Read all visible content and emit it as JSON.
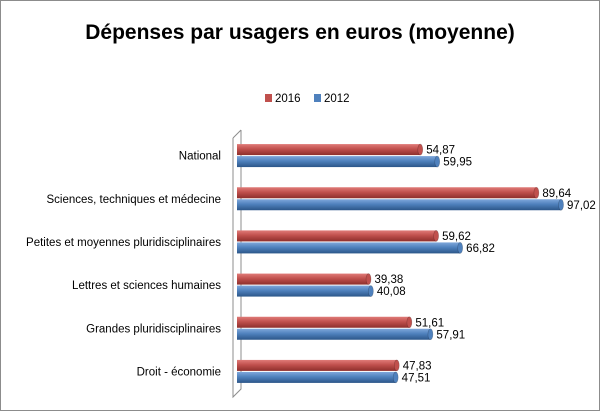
{
  "chart_data": {
    "type": "bar",
    "orientation": "horizontal",
    "title": "Dépenses par usagers en euros (moyenne)",
    "xlabel": "",
    "ylabel": "",
    "grid": false,
    "legend_position": "top",
    "xlim": [
      0,
      100
    ],
    "categories": [
      "National",
      "Sciences, techniques et médecine",
      "Petites et moyennes pluridisciplinaires",
      "Lettres et sciences humaines",
      "Grandes pluridisciplinaires",
      "Droit - économie"
    ],
    "series": [
      {
        "name": "2016",
        "color": "#c0504d",
        "values": [
          54.87,
          89.64,
          59.62,
          39.38,
          51.61,
          47.83
        ],
        "labels": [
          "54,87",
          "89,64",
          "59,62",
          "39,38",
          "51,61",
          "47,83"
        ]
      },
      {
        "name": "2012",
        "color": "#4f81bd",
        "values": [
          59.95,
          97.02,
          66.82,
          40.08,
          57.91,
          47.51
        ],
        "labels": [
          "59,95",
          "97,02",
          "66,82",
          "40,08",
          "57,91",
          "47,51"
        ]
      }
    ]
  }
}
